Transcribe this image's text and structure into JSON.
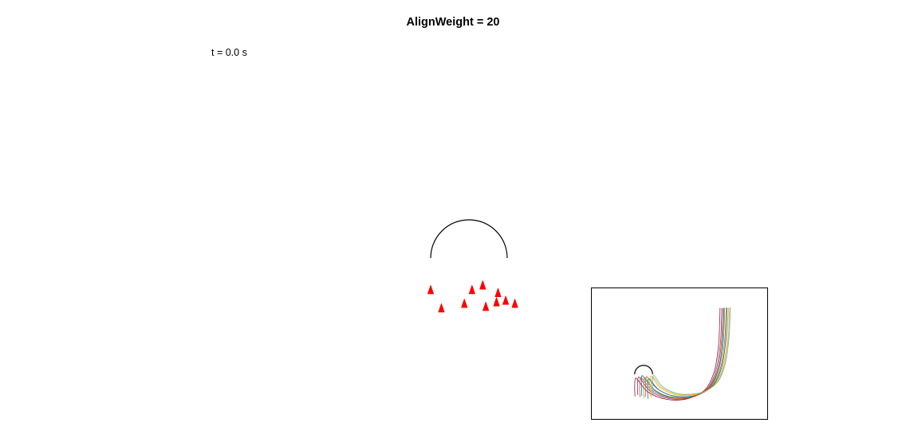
{
  "figure": {
    "title": "AlignWeight = 20",
    "time_label": "t = 0.0 s"
  },
  "colors": {
    "agent": "#ff0000",
    "obstacle": "#000000",
    "trajectories": [
      "#0072bd",
      "#d95319",
      "#edb120",
      "#7e2f8e",
      "#77ac30",
      "#4dbeee",
      "#a2142f"
    ]
  },
  "chart_data": [
    {
      "type": "scatter",
      "description_of_marks": "agent positions drawn as red triangles",
      "series": [
        {
          "x": [
            -0.3,
            0.9,
            1.9,
            0.2,
            -2.5,
            1.8,
            3.0,
            -1.8,
            1.1,
            2.4
          ],
          "y": [
            -3.0,
            -1.8,
            -2.3,
            -2.1,
            -2.1,
            -2.9,
            -3.0,
            -3.3,
            -3.2,
            -2.8
          ]
        }
      ],
      "obstacle": {
        "shape": "semicircle",
        "center": [
          0,
          0
        ],
        "radius": 2.5
      }
    },
    {
      "type": "line",
      "inset": true,
      "obstacle": {
        "shape": "semicircle",
        "center": [
          0,
          0
        ],
        "radius": 2.5
      },
      "series": [
        {
          "x": [
            -0.5,
            -0.6,
            -0.5,
            0.2,
            3.0,
            8.0,
            14.0,
            18.5,
            21.0,
            22.0,
            22.3,
            22.4
          ],
          "y": [
            -6.0,
            -3.0,
            -0.5,
            -1.0,
            -4.5,
            -6.5,
            -6.2,
            -3.5,
            2.0,
            9.0,
            15.0,
            18.5
          ]
        },
        {
          "x": [
            0.6,
            0.5,
            0.7,
            1.4,
            4.0,
            8.8,
            14.8,
            19.3,
            21.6,
            22.6,
            22.9,
            23.0
          ],
          "y": [
            -6.3,
            -3.3,
            -0.8,
            -1.2,
            -4.2,
            -6.1,
            -5.8,
            -3.0,
            2.4,
            9.4,
            15.4,
            18.6
          ]
        },
        {
          "x": [
            1.8,
            1.7,
            1.9,
            2.6,
            4.8,
            9.5,
            15.5,
            20.0,
            22.3,
            23.3,
            23.6,
            23.7
          ],
          "y": [
            -6.1,
            -2.9,
            -0.6,
            -1.0,
            -3.9,
            -5.8,
            -5.4,
            -2.6,
            2.8,
            9.8,
            15.8,
            18.6
          ]
        },
        {
          "x": [
            -1.6,
            -1.7,
            -1.5,
            -0.8,
            2.0,
            7.2,
            13.0,
            17.8,
            20.3,
            21.4,
            21.7,
            21.8
          ],
          "y": [
            -5.8,
            -3.1,
            -0.9,
            -1.3,
            -4.8,
            -6.8,
            -6.5,
            -3.9,
            1.6,
            8.7,
            14.7,
            18.5
          ]
        },
        {
          "x": [
            0.1,
            0.0,
            0.2,
            0.9,
            3.5,
            8.3,
            14.3,
            18.9,
            21.2,
            22.2,
            22.5,
            22.6
          ],
          "y": [
            -6.6,
            -3.6,
            -1.1,
            -1.5,
            -4.6,
            -6.4,
            -6.0,
            -3.2,
            2.2,
            9.2,
            15.2,
            18.6
          ]
        },
        {
          "x": [
            2.6,
            2.5,
            2.7,
            3.3,
            5.5,
            10.2,
            16.2,
            20.6,
            22.8,
            23.8,
            24.1,
            24.2
          ],
          "y": [
            -5.9,
            -2.7,
            -0.4,
            -0.8,
            -3.6,
            -5.5,
            -5.0,
            -2.2,
            3.2,
            10.2,
            16.2,
            18.6
          ]
        },
        {
          "x": [
            -2.4,
            -2.5,
            -2.3,
            -1.6,
            1.3,
            6.5,
            12.3,
            17.2,
            19.8,
            20.9,
            21.2,
            21.3
          ],
          "y": [
            -6.2,
            -3.4,
            -1.2,
            -1.6,
            -5.0,
            -7.0,
            -6.8,
            -4.2,
            1.2,
            8.4,
            14.4,
            18.5
          ]
        },
        {
          "x": [
            1.2,
            1.1,
            1.3,
            2.0,
            4.4,
            9.1,
            15.1,
            19.6,
            21.9,
            22.9,
            23.2,
            23.3
          ],
          "y": [
            -6.8,
            -3.8,
            -1.4,
            -1.7,
            -4.4,
            -6.2,
            -5.7,
            -2.8,
            2.6,
            9.6,
            15.6,
            18.6
          ]
        },
        {
          "x": [
            -1.0,
            -1.1,
            -0.9,
            -0.2,
            2.6,
            7.7,
            13.6,
            18.2,
            20.7,
            21.7,
            22.0,
            22.1
          ],
          "y": [
            -6.4,
            -3.5,
            -1.0,
            -1.4,
            -4.7,
            -6.6,
            -6.3,
            -3.7,
            1.8,
            8.9,
            14.9,
            18.5
          ]
        },
        {
          "x": [
            2.2,
            2.1,
            2.3,
            3.0,
            5.2,
            9.9,
            15.9,
            20.3,
            22.6,
            23.6,
            23.9,
            24.0
          ],
          "y": [
            -6.5,
            -3.2,
            -0.9,
            -1.1,
            -3.8,
            -5.6,
            -5.2,
            -2.4,
            3.0,
            10.0,
            16.0,
            18.6
          ]
        }
      ]
    }
  ]
}
